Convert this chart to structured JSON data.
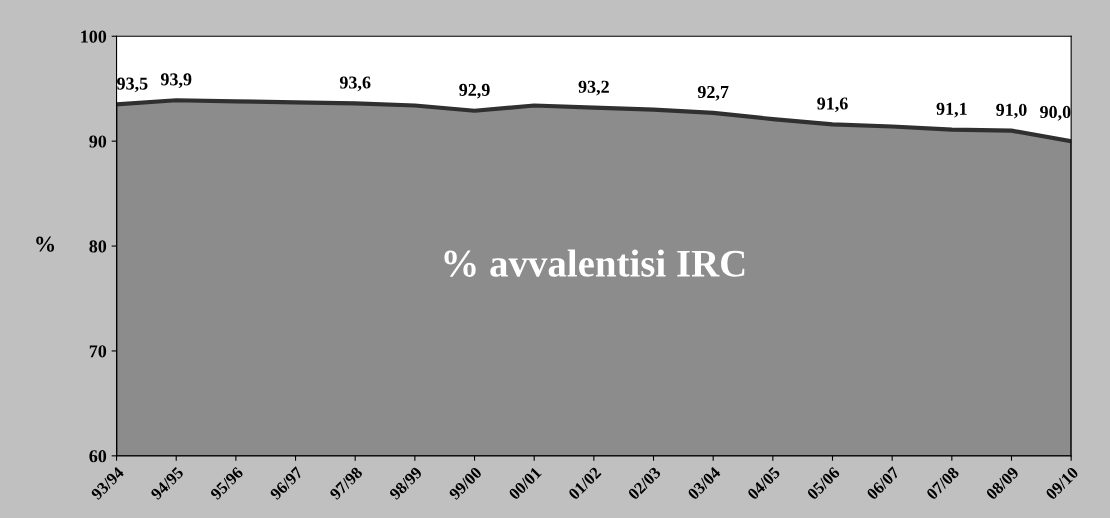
{
  "chart_data": {
    "type": "area",
    "ylabel": "%",
    "categories": [
      "93/94",
      "94/95",
      "95/96",
      "96/97",
      "97/98",
      "98/99",
      "99/00",
      "00/01",
      "01/02",
      "02/03",
      "03/04",
      "04/05",
      "05/06",
      "06/07",
      "07/08",
      "08/09",
      "09/10"
    ],
    "values": [
      93.5,
      93.9,
      93.8,
      93.7,
      93.6,
      93.4,
      92.9,
      93.4,
      93.2,
      93.0,
      92.7,
      92.1,
      91.6,
      91.4,
      91.1,
      91.0,
      90.0
    ],
    "value_labels": [
      "93,5",
      "93,9",
      null,
      null,
      "93,6",
      null,
      "92,9",
      null,
      "93,2",
      null,
      "92,7",
      null,
      "91,6",
      null,
      "91,1",
      "91,0",
      "90,0"
    ],
    "color": "#8c8c8c",
    "ylim": [
      60,
      100
    ],
    "yticks": [
      60,
      70,
      80,
      90,
      100
    ],
    "grid": false,
    "annotations": [
      "% avvalentisi IRC"
    ]
  }
}
